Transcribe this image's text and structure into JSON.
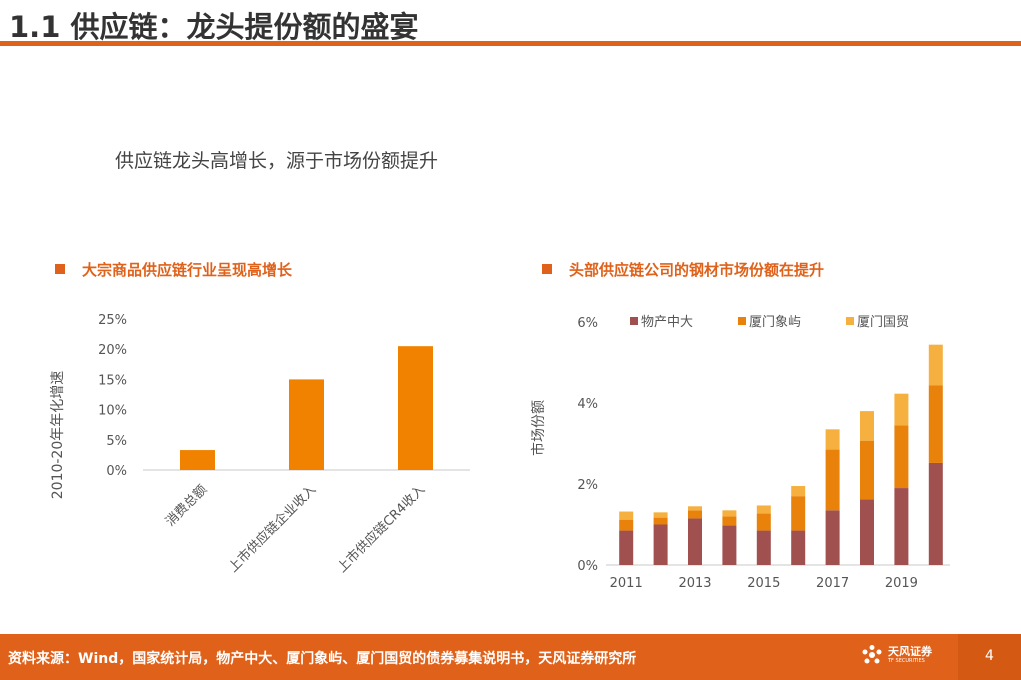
{
  "header": {
    "title": "1.1 供应链：龙头提份额的盛宴"
  },
  "subtitle": "供应链龙头高增长，源于市场份额提升",
  "panels": {
    "left_title": "大宗商品供应链行业呈现高增长",
    "right_title": "头部供应链公司的钢材市场份额在提升"
  },
  "colors": {
    "accent": "#e06119",
    "bar_orange": "#f08200",
    "series1": "#a0504f",
    "series2": "#e8820b",
    "series3": "#f6b040"
  },
  "chart_data": [
    {
      "type": "bar",
      "title": "大宗商品供应链行业呈现高增长",
      "categories": [
        "消费总额",
        "上市供应链企业收入",
        "上市供应链CR4收入"
      ],
      "values": [
        3.3,
        15.0,
        20.5
      ],
      "ylabel": "2010-20年年化增速",
      "ylim": [
        0,
        25
      ],
      "yticks": [
        0,
        5,
        10,
        15,
        20,
        25
      ],
      "ytick_labels": [
        "0%",
        "5%",
        "10%",
        "15%",
        "20%",
        "25%"
      ],
      "grid": false,
      "color": "#f08200"
    },
    {
      "type": "bar",
      "stacked": true,
      "title": "头部供应链公司的钢材市场份额在提升",
      "x": [
        2011,
        2012,
        2013,
        2014,
        2015,
        2016,
        2017,
        2018,
        2019,
        2020
      ],
      "xtick_labels": [
        "2011",
        "2013",
        "2015",
        "2017",
        "2019"
      ],
      "ylabel": "市场份额",
      "ylim": [
        0,
        6
      ],
      "yticks": [
        0,
        2,
        4,
        6
      ],
      "ytick_labels": [
        "0%",
        "2%",
        "4%",
        "6%"
      ],
      "legend_position": "top",
      "series": [
        {
          "name": "物产中大",
          "color": "#a0504f",
          "values": [
            0.85,
            1.0,
            1.15,
            0.98,
            0.85,
            0.85,
            1.35,
            1.62,
            1.9,
            2.52
          ]
        },
        {
          "name": "厦门象屿",
          "color": "#e8820b",
          "values": [
            0.27,
            0.17,
            0.2,
            0.22,
            0.42,
            0.85,
            1.5,
            1.45,
            1.55,
            1.92
          ]
        },
        {
          "name": "厦门国贸",
          "color": "#f6b040",
          "values": [
            0.2,
            0.13,
            0.1,
            0.15,
            0.2,
            0.25,
            0.5,
            0.73,
            0.78,
            1.0
          ]
        }
      ]
    }
  ],
  "footer": {
    "source": "资料来源：Wind，国家统计局，物产中大、厦门象屿、厦门国贸的债券募集说明书，天风证券研究所",
    "logo_text": "天风证券",
    "logo_sub": "TF SECURITIES",
    "page_number": "4"
  }
}
